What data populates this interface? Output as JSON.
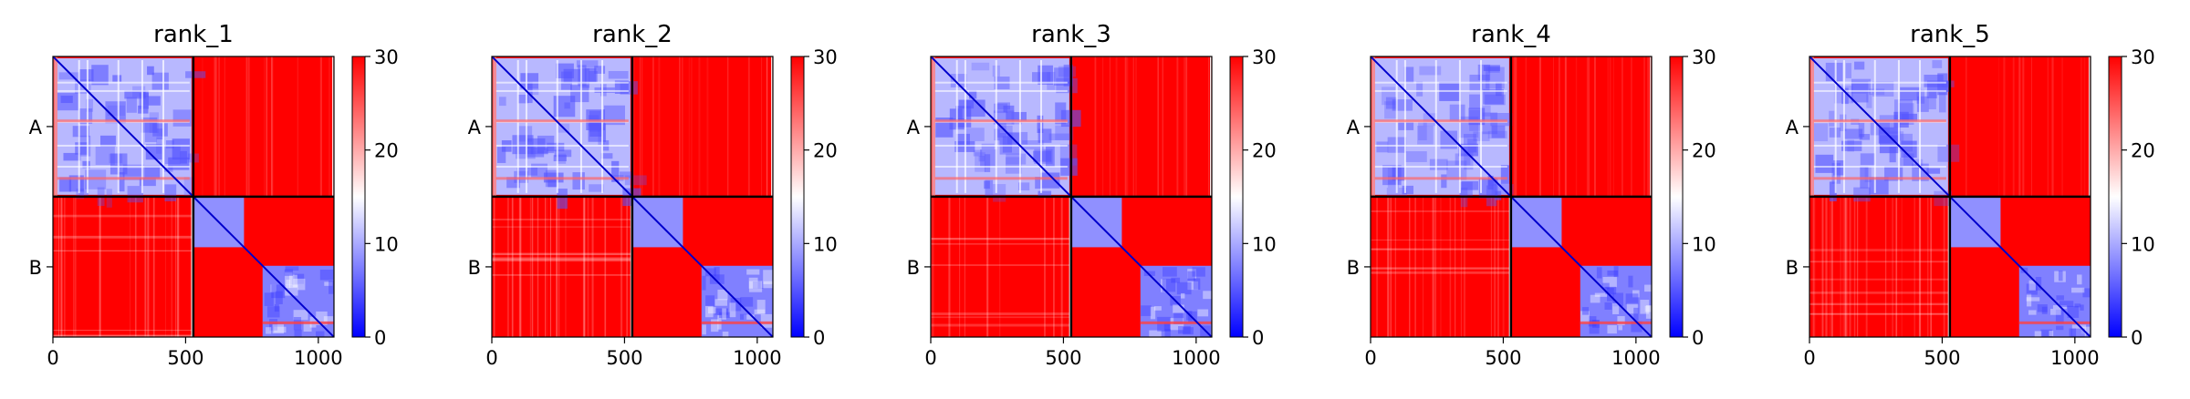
{
  "chart_data": [
    {
      "type": "heatmap",
      "title": "rank_1",
      "xticks": [
        0,
        500,
        1000
      ],
      "xlim": [
        0,
        1059
      ],
      "ylim": [
        0,
        1059
      ],
      "chain_boundary": 529,
      "yticklabels": [
        "A",
        "B"
      ],
      "colorbar": {
        "min": 0,
        "max": 30,
        "ticks": [
          0,
          10,
          20,
          30
        ],
        "colors": [
          "#0000ff",
          "#ffffff",
          "#ff0000"
        ]
      }
    },
    {
      "type": "heatmap",
      "title": "rank_2",
      "xticks": [
        0,
        500,
        1000
      ],
      "xlim": [
        0,
        1059
      ],
      "ylim": [
        0,
        1059
      ],
      "chain_boundary": 529,
      "yticklabels": [
        "A",
        "B"
      ],
      "colorbar": {
        "min": 0,
        "max": 30,
        "ticks": [
          0,
          10,
          20,
          30
        ],
        "colors": [
          "#0000ff",
          "#ffffff",
          "#ff0000"
        ]
      }
    },
    {
      "type": "heatmap",
      "title": "rank_3",
      "xticks": [
        0,
        500,
        1000
      ],
      "xlim": [
        0,
        1059
      ],
      "ylim": [
        0,
        1059
      ],
      "chain_boundary": 529,
      "yticklabels": [
        "A",
        "B"
      ],
      "colorbar": {
        "min": 0,
        "max": 30,
        "ticks": [
          0,
          10,
          20,
          30
        ],
        "colors": [
          "#0000ff",
          "#ffffff",
          "#ff0000"
        ]
      }
    },
    {
      "type": "heatmap",
      "title": "rank_4",
      "xticks": [
        0,
        500,
        1000
      ],
      "xlim": [
        0,
        1059
      ],
      "ylim": [
        0,
        1059
      ],
      "chain_boundary": 529,
      "yticklabels": [
        "A",
        "B"
      ],
      "colorbar": {
        "min": 0,
        "max": 30,
        "ticks": [
          0,
          10,
          20,
          30
        ],
        "colors": [
          "#0000ff",
          "#ffffff",
          "#ff0000"
        ]
      }
    },
    {
      "type": "heatmap",
      "title": "rank_5",
      "xticks": [
        0,
        500,
        1000
      ],
      "xlim": [
        0,
        1059
      ],
      "ylim": [
        0,
        1059
      ],
      "chain_boundary": 529,
      "yticklabels": [
        "A",
        "B"
      ],
      "colorbar": {
        "min": 0,
        "max": 30,
        "ticks": [
          0,
          10,
          20,
          30
        ],
        "colors": [
          "#0000ff",
          "#ffffff",
          "#ff0000"
        ]
      }
    }
  ]
}
